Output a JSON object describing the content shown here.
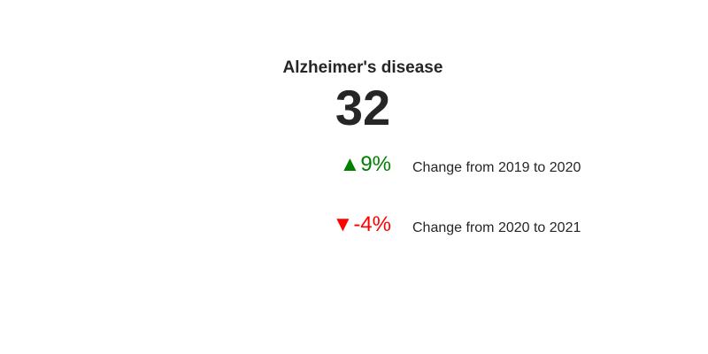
{
  "chart_data": {
    "type": "indicator",
    "title": "Alzheimer's disease",
    "value": "32",
    "deltas": [
      {
        "direction": "up",
        "arrow": "▲",
        "value": "9%",
        "label": "Change from 2019 to 2020",
        "color": "#008000"
      },
      {
        "direction": "down",
        "arrow": "▼",
        "value": "-4%",
        "label": "Change from 2020 to 2021",
        "color": "#ff0000"
      }
    ]
  }
}
